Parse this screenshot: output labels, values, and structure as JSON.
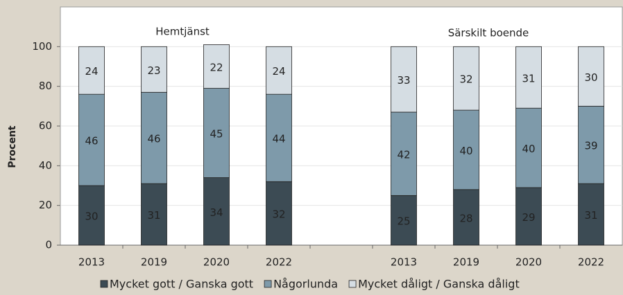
{
  "chart_data": {
    "type": "stacked-bar",
    "y_label": "Procent",
    "annotations": [
      "Hemtjänst",
      "Särskilt boende"
    ],
    "categories": [
      "2013",
      "2019",
      "2020",
      "2022",
      null,
      "2013",
      "2019",
      "2020",
      "2022"
    ],
    "series": [
      {
        "name": "Mycket gott / Ganska gott",
        "color": "#3c4b54",
        "values": [
          30,
          31,
          34,
          32,
          null,
          25,
          28,
          29,
          31
        ]
      },
      {
        "name": "Någorlunda",
        "color": "#7e9aaa",
        "values": [
          46,
          46,
          45,
          44,
          null,
          42,
          40,
          40,
          39
        ]
      },
      {
        "name": "Mycket dåligt / Ganska dåligt",
        "color": "#d5dde3",
        "values": [
          24,
          23,
          22,
          24,
          null,
          33,
          32,
          31,
          30
        ]
      }
    ],
    "ylim": [
      0,
      120
    ],
    "yticks": [
      0,
      20,
      40,
      60,
      80,
      100
    ],
    "grid": true
  }
}
